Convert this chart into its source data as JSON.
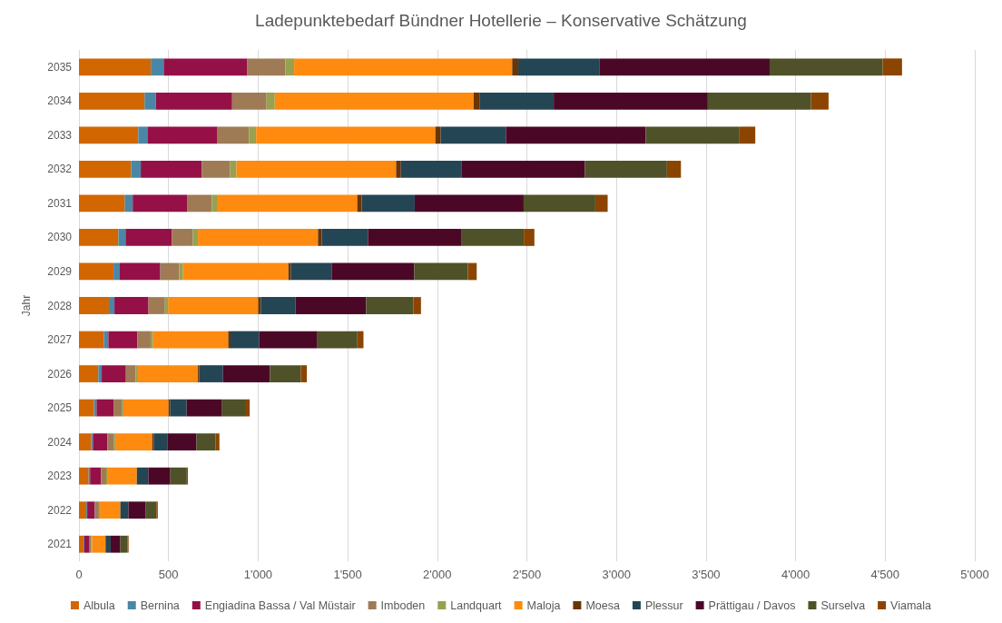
{
  "chart_data": {
    "type": "bar",
    "orientation": "horizontal",
    "stacked": true,
    "title": "Ladepunktebedarf Bündner Hotellerie – Konservative Schätzung",
    "ylabel": "Jahr",
    "categories": [
      "2035",
      "2034",
      "2033",
      "2032",
      "2031",
      "2030",
      "2029",
      "2028",
      "2027",
      "2026",
      "2025",
      "2024",
      "2023",
      "2022",
      "2021"
    ],
    "xlim": [
      0,
      5000
    ],
    "xticks": [
      0,
      500,
      {
        "value": 1000,
        "label": "1'000"
      },
      {
        "value": 1500,
        "label": "1'500"
      },
      {
        "value": 2000,
        "label": "2'000"
      },
      {
        "value": 2500,
        "label": "2'500"
      },
      {
        "value": 3000,
        "label": "3'000"
      },
      {
        "value": 3500,
        "label": "3'500"
      },
      {
        "value": 4000,
        "label": "4'000"
      },
      {
        "value": 4500,
        "label": "4'500"
      },
      {
        "value": 5000,
        "label": "5'000"
      }
    ],
    "grid": "x",
    "legend": "bottom",
    "series": [
      {
        "name": "Albula",
        "color": "#d26600",
        "values": [
          401,
          366,
          331,
          291,
          256,
          220,
          193,
          167,
          139,
          108,
          84,
          68,
          54,
          41,
          25
        ]
      },
      {
        "name": "Bernina",
        "color": "#4a87a6",
        "values": [
          72,
          63,
          54,
          54,
          44,
          40,
          35,
          31,
          25,
          19,
          14,
          10,
          8,
          5,
          5
        ]
      },
      {
        "name": "Engiadina Bassa / Val Müstair",
        "color": "#951046",
        "values": [
          467,
          426,
          385,
          341,
          303,
          259,
          226,
          190,
          162,
          135,
          95,
          81,
          61,
          42,
          29
        ]
      },
      {
        "name": "Imboden",
        "color": "#9e7b55",
        "values": [
          212,
          192,
          179,
          158,
          139,
          116,
          105,
          92,
          74,
          54,
          49,
          37,
          29,
          23,
          10
        ]
      },
      {
        "name": "Landquart",
        "color": "#97a150",
        "values": [
          49,
          46,
          40,
          35,
          28,
          29,
          22,
          18,
          14,
          13,
          6,
          7,
          5,
          6,
          5
        ]
      },
      {
        "name": "Maloja",
        "color": "#ff8a10",
        "values": [
          1217,
          1110,
          1000,
          891,
          783,
          670,
          588,
          502,
          419,
          335,
          252,
          206,
          166,
          114,
          73
        ]
      },
      {
        "name": "Moesa",
        "color": "#6b3405",
        "values": [
          34,
          35,
          30,
          27,
          25,
          21,
          13,
          15,
          13,
          8,
          10,
          8,
          null,
          null,
          3
        ]
      },
      {
        "name": "Plessur",
        "color": "#244554",
        "values": [
          455,
          412,
          364,
          340,
          296,
          258,
          228,
          193,
          159,
          132,
          91,
          76,
          64,
          45,
          27
        ]
      },
      {
        "name": "Prättigau / Davos",
        "color": "#4b0826",
        "values": [
          948,
          860,
          780,
          687,
          608,
          520,
          461,
          395,
          326,
          262,
          198,
          162,
          123,
          97,
          54
        ]
      },
      {
        "name": "Surselva",
        "color": "#4f5128",
        "values": [
          631,
          576,
          524,
          458,
          400,
          350,
          300,
          263,
          223,
          172,
          133,
          108,
          92,
          59,
          39
        ]
      },
      {
        "name": "Viamala",
        "color": "#8b4500",
        "values": [
          108,
          98,
          88,
          78,
          69,
          59,
          49,
          43,
          34,
          34,
          21,
          21,
          6,
          8,
          7
        ]
      }
    ]
  }
}
